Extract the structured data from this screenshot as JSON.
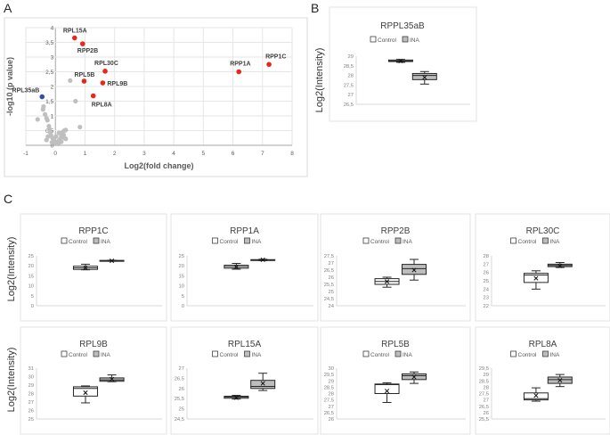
{
  "panel_labels": {
    "a": "A",
    "b": "B",
    "c": "C"
  },
  "colors": {
    "red": "#e8261c",
    "blue": "#2f4fa8",
    "gray": "#bfbfbf",
    "box_ina": "#bdbdbd",
    "box_control": "#ffffff",
    "grid": "#e6e6e6",
    "frame": "#d9d9d9"
  },
  "chart_data": [
    {
      "id": "volcano",
      "type": "scatter",
      "xlabel": "Log2(fold change)",
      "ylabel": "-log10 (p value)",
      "xlim": [
        -1,
        8
      ],
      "ylim": [
        0,
        4
      ],
      "grid": true,
      "x_ticks": [
        "-1",
        "0",
        "1",
        "2",
        "3",
        "4",
        "5",
        "6",
        "7",
        "8"
      ],
      "y_ticks": [
        "0",
        "0,5",
        "1",
        "1,5",
        "2",
        "2,5",
        "3",
        "3,5",
        "4"
      ],
      "labeled_points": [
        {
          "label": "RPL15A",
          "x": 0.65,
          "y": 3.65,
          "color": "red"
        },
        {
          "label": "RPP2B",
          "x": 0.92,
          "y": 3.45,
          "color": "red"
        },
        {
          "label": "RPL30C",
          "x": 1.68,
          "y": 2.52,
          "color": "red"
        },
        {
          "label": "RPL5B",
          "x": 0.97,
          "y": 2.18,
          "color": "red"
        },
        {
          "label": "RPL9B",
          "x": 1.6,
          "y": 2.12,
          "color": "red"
        },
        {
          "label": "RPL8A",
          "x": 1.28,
          "y": 1.68,
          "color": "red"
        },
        {
          "label": "RPP1A",
          "x": 6.2,
          "y": 2.5,
          "color": "red"
        },
        {
          "label": "RPP1C",
          "x": 7.22,
          "y": 2.75,
          "color": "red"
        },
        {
          "label": "RPL35aB",
          "x": -0.45,
          "y": 1.65,
          "color": "blue"
        }
      ],
      "other_points": [
        [
          0.5,
          2.2
        ],
        [
          0.68,
          1.5
        ],
        [
          0.83,
          0.62
        ],
        [
          -0.6,
          0.88
        ],
        [
          -0.4,
          1.32
        ],
        [
          -0.42,
          1.22
        ],
        [
          -0.35,
          1.05
        ],
        [
          -0.3,
          0.92
        ],
        [
          -0.27,
          0.85
        ],
        [
          -0.22,
          0.65
        ],
        [
          -0.2,
          0.55
        ],
        [
          -0.18,
          0.45
        ],
        [
          -0.15,
          0.35
        ],
        [
          -0.25,
          0.3
        ],
        [
          -0.1,
          0.25
        ],
        [
          -0.05,
          0.15
        ],
        [
          0,
          0.05
        ],
        [
          0.05,
          0.1
        ],
        [
          0.1,
          0.15
        ],
        [
          0.15,
          0.2
        ],
        [
          0.2,
          0.3
        ],
        [
          0.25,
          0.45
        ],
        [
          0.3,
          0.5
        ],
        [
          0.35,
          0.52
        ],
        [
          0.3,
          0.25
        ],
        [
          0.35,
          0.22
        ],
        [
          0.2,
          0.12
        ],
        [
          0.1,
          0.05
        ],
        [
          -0.12,
          0.1
        ],
        [
          0.22,
          0.38
        ],
        [
          0.28,
          0.35
        ],
        [
          -0.3,
          0.18
        ],
        [
          0.02,
          0.3
        ],
        [
          0.12,
          0.42
        ]
      ]
    },
    {
      "id": "RPPL35aB",
      "type": "box",
      "title": "RPPL35aB",
      "ylabel": "Log2(Intensity)",
      "legend": [
        "Control",
        "INA"
      ],
      "ylim": [
        26.5,
        29
      ],
      "y_ticks": [
        "26,5",
        "27",
        "27,5",
        "28",
        "28,5",
        "29"
      ],
      "series": [
        {
          "name": "Control",
          "min": 28.68,
          "q1": 28.72,
          "median": 28.75,
          "q3": 28.8,
          "max": 28.83,
          "mean": 28.75
        },
        {
          "name": "INA",
          "min": 27.55,
          "q1": 27.78,
          "median": 28.0,
          "q3": 28.1,
          "max": 28.2,
          "mean": 27.9
        }
      ]
    },
    {
      "id": "RPP1C",
      "type": "box",
      "title": "RPP1C",
      "legend": [
        "Control",
        "INA"
      ],
      "ylim": [
        0,
        25
      ],
      "y_ticks": [
        "0",
        "5",
        "10",
        "15",
        "20",
        "25"
      ],
      "series": [
        {
          "name": "Control",
          "min": 18.0,
          "q1": 18.2,
          "median": 19.0,
          "q3": 19.8,
          "max": 20.8,
          "mean": 19.0
        },
        {
          "name": "INA",
          "min": 22.3,
          "q1": 22.4,
          "median": 22.6,
          "q3": 22.7,
          "max": 22.8,
          "mean": 22.5
        }
      ]
    },
    {
      "id": "RPP1A",
      "type": "box",
      "title": "RPP1A",
      "legend": [
        "Control",
        "INA"
      ],
      "ylim": [
        0,
        25
      ],
      "y_ticks": [
        "0",
        "5",
        "10",
        "15",
        "20",
        "25"
      ],
      "series": [
        {
          "name": "Control",
          "min": 18.3,
          "q1": 18.8,
          "median": 19.6,
          "q3": 20.3,
          "max": 21.2,
          "mean": 19.5
        },
        {
          "name": "INA",
          "min": 22.6,
          "q1": 22.8,
          "median": 23.0,
          "q3": 23.1,
          "max": 23.3,
          "mean": 23.0
        }
      ]
    },
    {
      "id": "RPP2B",
      "type": "box",
      "title": "RPP2B",
      "legend": [
        "Control",
        "INA"
      ],
      "ylim": [
        24,
        27.5
      ],
      "y_ticks": [
        "24",
        "24,5",
        "25",
        "25,5",
        "26",
        "26,5",
        "27",
        "27,5"
      ],
      "series": [
        {
          "name": "Control",
          "min": 25.3,
          "q1": 25.5,
          "median": 25.7,
          "q3": 25.9,
          "max": 26.0,
          "mean": 25.7
        },
        {
          "name": "INA",
          "min": 25.8,
          "q1": 26.2,
          "median": 26.6,
          "q3": 26.9,
          "max": 27.25,
          "mean": 26.5
        }
      ]
    },
    {
      "id": "RPL30C",
      "type": "box",
      "title": "RPL30C",
      "legend": [
        "Control",
        "INA"
      ],
      "ylim": [
        22,
        28
      ],
      "y_ticks": [
        "22",
        "23",
        "24",
        "25",
        "26",
        "27",
        "28"
      ],
      "series": [
        {
          "name": "Control",
          "min": 24.0,
          "q1": 24.8,
          "median": 25.7,
          "q3": 25.9,
          "max": 26.2,
          "mean": 25.3
        },
        {
          "name": "INA",
          "min": 26.6,
          "q1": 26.7,
          "median": 26.85,
          "q3": 27.0,
          "max": 27.2,
          "mean": 26.8
        }
      ]
    },
    {
      "id": "RPL9B",
      "type": "box",
      "title": "RPL9B",
      "legend": [
        "Control",
        "INA"
      ],
      "ylim": [
        25,
        31
      ],
      "y_ticks": [
        "25",
        "26",
        "27",
        "28",
        "29",
        "30",
        "31"
      ],
      "series": [
        {
          "name": "Control",
          "min": 26.9,
          "q1": 27.7,
          "median": 28.6,
          "q3": 28.8,
          "max": 28.9,
          "mean": 28.1
        },
        {
          "name": "INA",
          "min": 29.4,
          "q1": 29.45,
          "median": 29.6,
          "q3": 29.85,
          "max": 30.2,
          "mean": 29.7
        }
      ]
    },
    {
      "id": "RPL15A",
      "type": "box",
      "title": "RPL15A",
      "legend": [
        "Control",
        "INA"
      ],
      "ylim": [
        24.5,
        27
      ],
      "y_ticks": [
        "24,5",
        "25",
        "25,5",
        "26",
        "26,5",
        "27"
      ],
      "series": [
        {
          "name": "Control",
          "min": 25.48,
          "q1": 25.52,
          "median": 25.58,
          "q3": 25.62,
          "max": 25.66,
          "mean": 25.55
        },
        {
          "name": "INA",
          "min": 25.9,
          "q1": 26.0,
          "median": 26.1,
          "q3": 26.4,
          "max": 26.75,
          "mean": 26.25
        }
      ]
    },
    {
      "id": "RPL5B",
      "type": "box",
      "title": "RPL5B",
      "legend": [
        "Control",
        "INA"
      ],
      "ylim": [
        26,
        30
      ],
      "y_ticks": [
        "26",
        "26,5",
        "27",
        "27,5",
        "28",
        "28,5",
        "29",
        "29,5",
        "30"
      ],
      "series": [
        {
          "name": "Control",
          "min": 27.3,
          "q1": 28.0,
          "median": 28.7,
          "q3": 28.75,
          "max": 28.85,
          "mean": 28.2
        },
        {
          "name": "INA",
          "min": 28.8,
          "q1": 29.1,
          "median": 29.4,
          "q3": 29.55,
          "max": 29.7,
          "mean": 29.3
        }
      ]
    },
    {
      "id": "RPL8A",
      "type": "box",
      "title": "RPL8A",
      "legend": [
        "Control",
        "INA"
      ],
      "ylim": [
        25.5,
        29.5
      ],
      "y_ticks": [
        "25,5",
        "26",
        "26,5",
        "27",
        "27,5",
        "28",
        "28,5",
        "29",
        "29,5"
      ],
      "series": [
        {
          "name": "Control",
          "min": 26.9,
          "q1": 27.0,
          "median": 27.1,
          "q3": 27.55,
          "max": 27.95,
          "mean": 27.35
        },
        {
          "name": "INA",
          "min": 28.05,
          "q1": 28.3,
          "median": 28.6,
          "q3": 28.8,
          "max": 29.0,
          "mean": 28.55
        }
      ]
    }
  ],
  "panel_c_ylabel": "Log2(Intensity)"
}
